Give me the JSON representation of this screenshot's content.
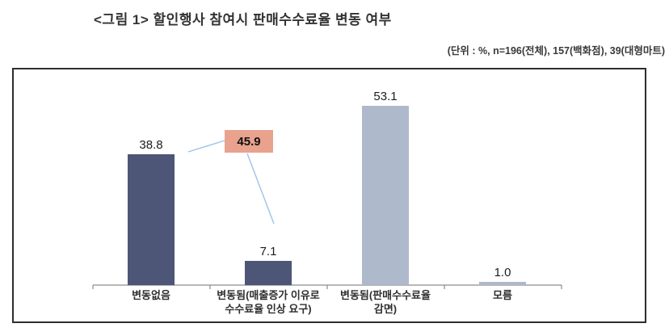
{
  "figure": {
    "title": "<그림 1> 할인행사 참여시 판매수수료율 변동 여부",
    "unit_note": "(단위 : %, n=196(전체), 157(백화점), 39(대형마트)"
  },
  "chart_data": {
    "type": "bar",
    "title": "할인행사 참여시 판매수수료율 변동 여부",
    "unit": "%",
    "sample_note": "n=196(전체), 157(백화점), 39(대형마트)",
    "categories": [
      "변동없음",
      "변동됨(매출증가 이유로\n수수료율 인상 요구)",
      "변동됨(판매수수료율\n감면)",
      "모름"
    ],
    "values": [
      38.8,
      7.1,
      53.1,
      1.0
    ],
    "value_labels": [
      "38.8",
      "7.1",
      "53.1",
      "1.0"
    ],
    "bar_colors": [
      "#4D5677",
      "#4D5677",
      "#AEB9CC",
      "#AEB9CC"
    ],
    "ylim": [
      0,
      60
    ],
    "grid": false,
    "legend": false,
    "xlabel": "",
    "ylabel": "",
    "callout": {
      "label": "45.9",
      "fill": "#E8A28D",
      "connects_to": [
        "변동없음",
        "변동됨(매출증가 이유로 수수료율 인상 요구)"
      ]
    },
    "axis_color": "#8C8C8C",
    "connector_color": "#9DC3E6"
  }
}
